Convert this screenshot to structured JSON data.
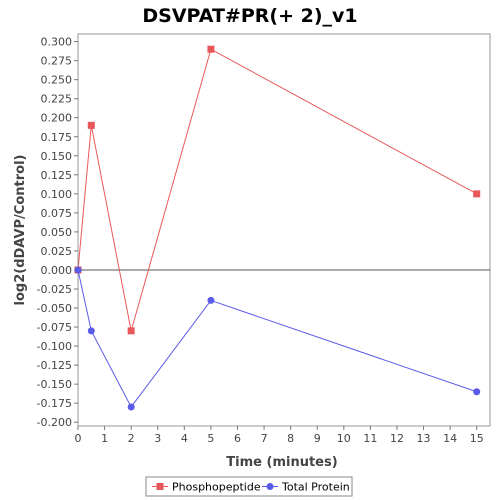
{
  "chart_data": {
    "type": "line",
    "title": "DSVPAT#PR(+ 2)_v1",
    "xlabel": "Time (minutes)",
    "ylabel": "log2(dDAVP/Control)",
    "xlim": [
      0,
      15.5
    ],
    "ylim": [
      -0.205,
      0.31
    ],
    "xticks": [
      0,
      1,
      2,
      3,
      4,
      5,
      6,
      7,
      8,
      9,
      10,
      11,
      12,
      13,
      14,
      15
    ],
    "yticks": [
      0.3,
      0.275,
      0.25,
      0.225,
      0.2,
      0.175,
      0.15,
      0.125,
      0.1,
      0.075,
      0.05,
      0.025,
      0.0,
      -0.025,
      -0.05,
      -0.075,
      -0.1,
      -0.125,
      -0.15,
      -0.175,
      -0.2
    ],
    "zero_line": true,
    "grid": false,
    "legend_position": "bottom",
    "series": [
      {
        "name": "Phosphopeptide",
        "color": "#e8585a",
        "marker": "square",
        "x": [
          0,
          0.5,
          2,
          5,
          15
        ],
        "y": [
          0.0,
          0.19,
          -0.08,
          0.29,
          0.1
        ]
      },
      {
        "name": "Total Protein",
        "color": "#5a5ae8",
        "marker": "circle",
        "x": [
          0,
          0.5,
          2,
          5,
          15
        ],
        "y": [
          0.0,
          -0.08,
          -0.18,
          -0.04,
          -0.16
        ]
      }
    ]
  }
}
